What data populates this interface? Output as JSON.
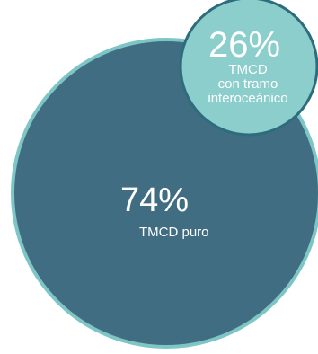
{
  "chart_data": {
    "type": "bubble",
    "series": [
      {
        "value": 74,
        "percent_label": "74%",
        "label_lines": [
          "TMCD puro"
        ],
        "color": "#416d82",
        "stroke": "#7ec6c6"
      },
      {
        "value": 26,
        "percent_label": "26%",
        "label_lines": [
          "TMCD",
          "con tramo",
          "interoceánico"
        ],
        "color": "#8ccecc",
        "stroke": "#2d6c7c"
      }
    ]
  }
}
